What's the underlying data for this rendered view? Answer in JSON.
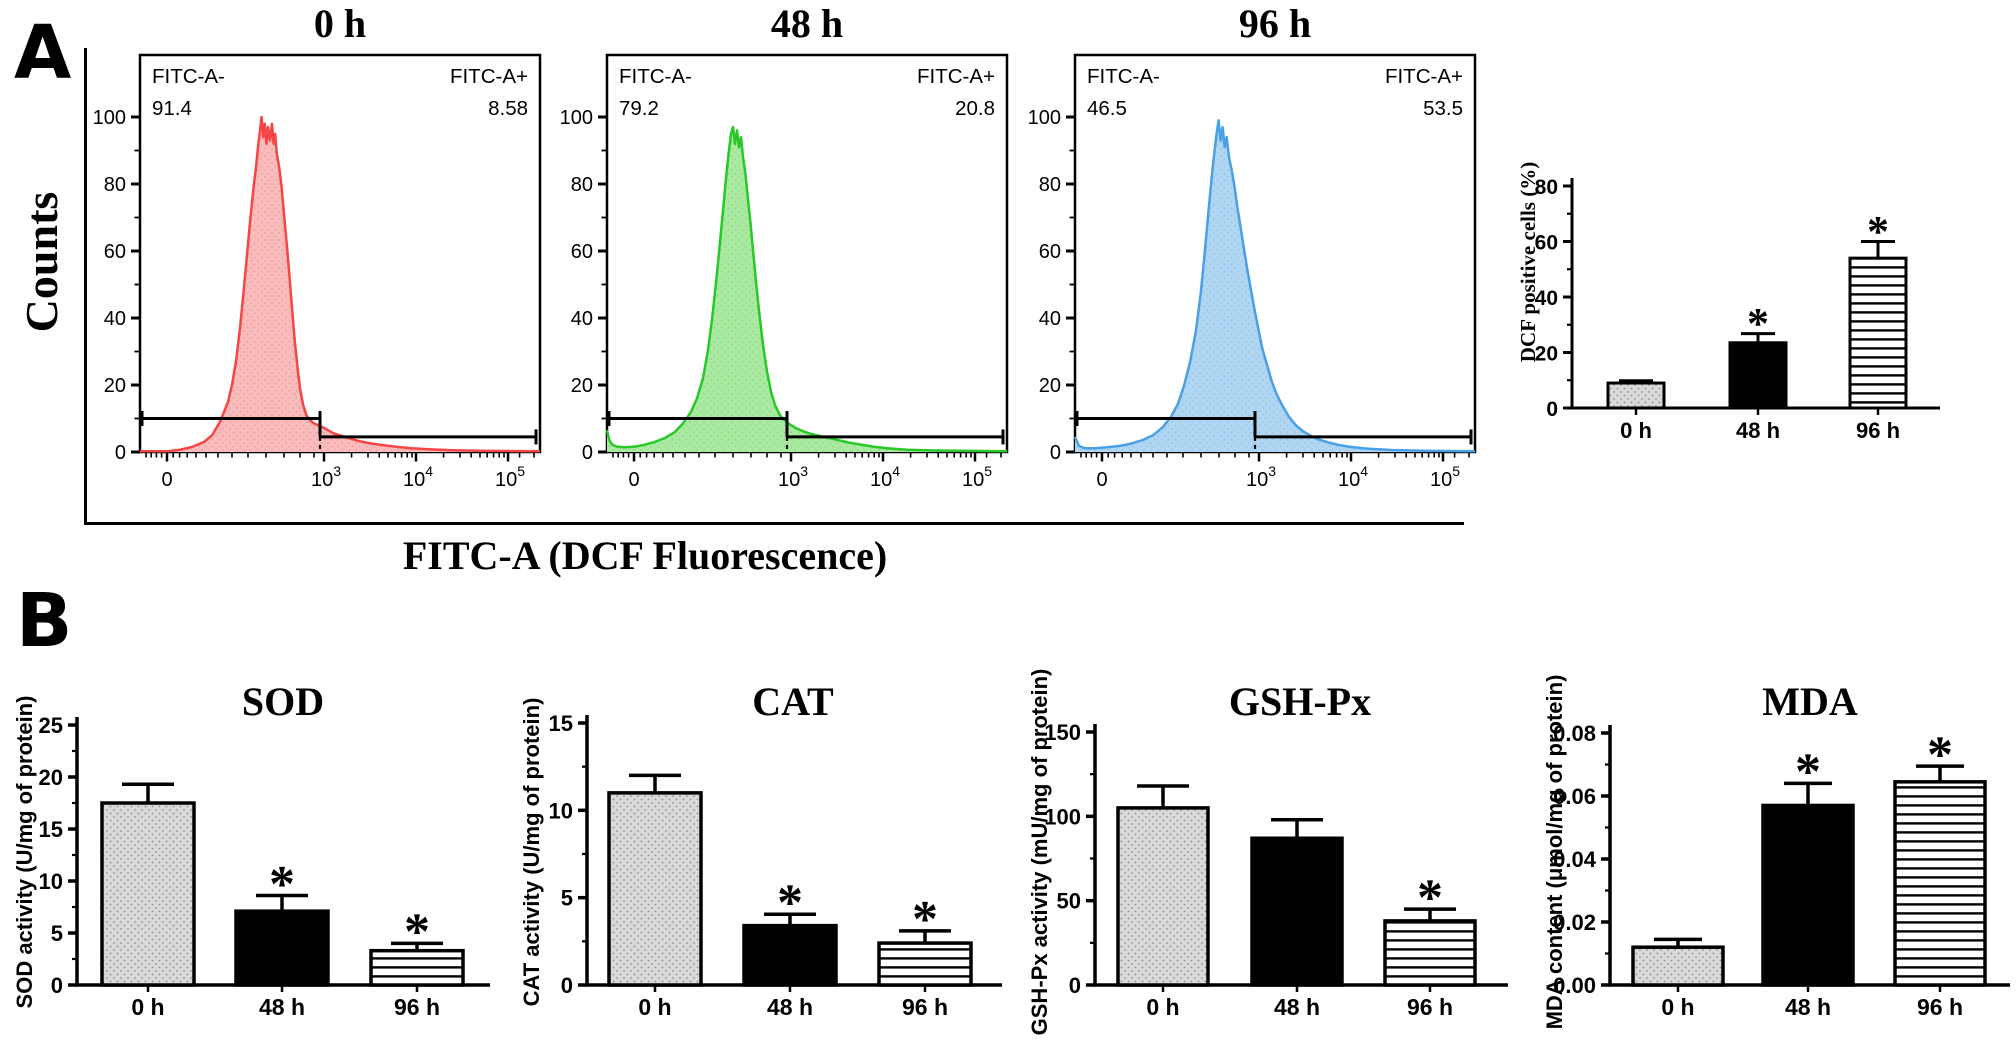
{
  "figure": {
    "panel_a": {
      "label": "A",
      "y_axis_label": "Counts",
      "x_axis_label": "FITC-A (DCF Fluorescence)"
    },
    "panel_b": {
      "label": "B"
    }
  },
  "chart_data": [
    {
      "id": "histogram-0h",
      "type": "histogram",
      "title": "0 h",
      "stroke": "#f54545",
      "fill": "#f9bcbc",
      "annotations": {
        "neg_label": "FITC-A-",
        "neg_value": "91.4",
        "pos_label": "FITC-A+",
        "pos_value": "8.58"
      },
      "ylim": [
        0,
        100
      ],
      "yticks": [
        0,
        20,
        40,
        60,
        80,
        100
      ],
      "xticks": [
        {
          "label": "0",
          "pos": 6.75
        },
        {
          "label": "10",
          "exp": "3",
          "pos": 46
        },
        {
          "label": "10",
          "exp": "4",
          "pos": 69
        },
        {
          "label": "10",
          "exp": "5",
          "pos": 92
        }
      ],
      "minor_xticks": [
        1.5,
        2.8,
        4.1,
        5.4,
        8.3,
        9.9,
        11.8,
        14,
        16.5,
        19.5,
        23,
        27,
        31.5,
        36,
        40,
        43.5,
        52.9,
        57,
        59.8,
        62,
        63.8,
        65.4,
        66.8,
        68,
        75.9,
        80,
        82.8,
        85,
        86.8,
        88.4,
        89.8,
        91,
        94.9,
        98.5
      ],
      "gate_split": 45,
      "neg_gate_level": 10,
      "pos_gate_level": 4.5,
      "curve": [
        [
          0,
          0.2
        ],
        [
          7,
          0.2
        ],
        [
          10,
          0.7
        ],
        [
          13,
          1.5
        ],
        [
          16,
          3
        ],
        [
          18,
          5
        ],
        [
          20,
          9
        ],
        [
          22,
          15
        ],
        [
          23,
          20
        ],
        [
          24,
          27
        ],
        [
          25,
          37
        ],
        [
          26,
          49
        ],
        [
          27,
          62
        ],
        [
          27.7,
          71
        ],
        [
          28.3,
          78
        ],
        [
          29,
          85
        ],
        [
          29.5,
          91
        ],
        [
          30,
          96
        ],
        [
          30.4,
          100
        ],
        [
          30.8,
          94
        ],
        [
          31.2,
          98
        ],
        [
          31.6,
          92
        ],
        [
          32,
          97
        ],
        [
          32.5,
          93
        ],
        [
          33,
          98
        ],
        [
          33.4,
          92
        ],
        [
          33.8,
          95
        ],
        [
          34.2,
          89
        ],
        [
          34.8,
          85
        ],
        [
          35.4,
          79
        ],
        [
          36,
          71
        ],
        [
          36.7,
          62
        ],
        [
          37.4,
          52
        ],
        [
          38,
          43
        ],
        [
          38.7,
          33
        ],
        [
          39.4,
          25
        ],
        [
          40,
          19
        ],
        [
          40.8,
          14
        ],
        [
          41.6,
          11
        ],
        [
          42.5,
          9.5
        ],
        [
          43.5,
          8.5
        ],
        [
          44.5,
          8
        ],
        [
          45.5,
          7.5
        ],
        [
          47,
          6.5
        ],
        [
          48.5,
          5.5
        ],
        [
          50.5,
          4.8
        ],
        [
          52.5,
          4
        ],
        [
          55,
          3.2
        ],
        [
          58,
          2.5
        ],
        [
          61,
          2
        ],
        [
          64.5,
          1.5
        ],
        [
          68,
          1.1
        ],
        [
          72,
          0.8
        ],
        [
          78,
          0.5
        ],
        [
          85,
          0.35
        ],
        [
          100,
          0.25
        ]
      ]
    },
    {
      "id": "histogram-48h",
      "type": "histogram",
      "title": "48 h",
      "stroke": "#28c828",
      "fill": "#abe9a3",
      "annotations": {
        "neg_label": "FITC-A-",
        "neg_value": "79.2",
        "pos_label": "FITC-A+",
        "pos_value": "20.8"
      },
      "ylim": [
        0,
        100
      ],
      "yticks": [
        0,
        20,
        40,
        60,
        80,
        100
      ],
      "xticks": [
        {
          "label": "0",
          "pos": 6.75
        },
        {
          "label": "10",
          "exp": "3",
          "pos": 46
        },
        {
          "label": "10",
          "exp": "4",
          "pos": 69
        },
        {
          "label": "10",
          "exp": "5",
          "pos": 92
        }
      ],
      "minor_xticks": [
        1.5,
        2.8,
        4.1,
        5.4,
        8.3,
        9.9,
        11.8,
        14,
        16.5,
        19.5,
        23,
        27,
        31.5,
        36,
        40,
        43.5,
        52.9,
        57,
        59.8,
        62,
        63.8,
        65.4,
        66.8,
        68,
        75.9,
        80,
        82.8,
        85,
        86.8,
        88.4,
        89.8,
        91,
        94.9,
        98.5
      ],
      "gate_split": 45,
      "neg_gate_level": 10,
      "pos_gate_level": 4.5,
      "curve": [
        [
          0,
          6.5
        ],
        [
          0.6,
          3.5
        ],
        [
          1.3,
          2.2
        ],
        [
          2.5,
          1.6
        ],
        [
          4.5,
          1.4
        ],
        [
          7,
          1.6
        ],
        [
          9.5,
          2.2
        ],
        [
          12,
          3
        ],
        [
          14.5,
          4.2
        ],
        [
          17,
          6
        ],
        [
          19,
          8.5
        ],
        [
          21,
          12
        ],
        [
          22.5,
          16
        ],
        [
          24,
          22
        ],
        [
          25.2,
          30
        ],
        [
          26.3,
          40
        ],
        [
          27.3,
          51
        ],
        [
          28.2,
          62
        ],
        [
          29,
          72
        ],
        [
          29.7,
          81
        ],
        [
          30.4,
          89
        ],
        [
          31,
          95
        ],
        [
          31.5,
          97
        ],
        [
          32,
          92
        ],
        [
          32.5,
          96
        ],
        [
          33,
          91
        ],
        [
          33.5,
          94
        ],
        [
          34,
          88
        ],
        [
          34.6,
          83
        ],
        [
          35.2,
          76
        ],
        [
          35.9,
          68
        ],
        [
          36.6,
          59
        ],
        [
          37.4,
          49
        ],
        [
          38.2,
          40
        ],
        [
          39,
          32
        ],
        [
          40,
          24
        ],
        [
          41,
          18
        ],
        [
          42,
          14
        ],
        [
          43.2,
          11
        ],
        [
          44.5,
          9.3
        ],
        [
          46,
          8
        ],
        [
          47.5,
          7
        ],
        [
          49,
          6.2
        ],
        [
          51,
          5.4
        ],
        [
          53,
          4.8
        ],
        [
          55.5,
          4.2
        ],
        [
          58,
          3.5
        ],
        [
          60.5,
          2.8
        ],
        [
          63.5,
          2.2
        ],
        [
          66.5,
          1.6
        ],
        [
          70,
          1.1
        ],
        [
          75,
          0.7
        ],
        [
          82,
          0.45
        ],
        [
          100,
          0.25
        ]
      ]
    },
    {
      "id": "histogram-96h",
      "type": "histogram",
      "title": "96 h",
      "stroke": "#4aa0e8",
      "fill": "#b0d6f2",
      "annotations": {
        "neg_label": "FITC-A-",
        "neg_value": "46.5",
        "pos_label": "FITC-A+",
        "pos_value": "53.5"
      },
      "ylim": [
        0,
        100
      ],
      "yticks": [
        0,
        20,
        40,
        60,
        80,
        100
      ],
      "xticks": [
        {
          "label": "0",
          "pos": 6.75
        },
        {
          "label": "10",
          "exp": "3",
          "pos": 46
        },
        {
          "label": "10",
          "exp": "4",
          "pos": 69
        },
        {
          "label": "10",
          "exp": "5",
          "pos": 92
        }
      ],
      "minor_xticks": [
        1.5,
        2.8,
        4.1,
        5.4,
        8.3,
        9.9,
        11.8,
        14,
        16.5,
        19.5,
        23,
        27,
        31.5,
        36,
        40,
        43.5,
        52.9,
        57,
        59.8,
        62,
        63.8,
        65.4,
        66.8,
        68,
        75.9,
        80,
        82.8,
        85,
        86.8,
        88.4,
        89.8,
        91,
        94.9,
        98.5
      ],
      "gate_split": 45,
      "neg_gate_level": 10,
      "pos_gate_level": 4.5,
      "curve": [
        [
          0,
          4.5
        ],
        [
          1,
          1.8
        ],
        [
          2.5,
          1.1
        ],
        [
          5,
          1.1
        ],
        [
          8,
          1.4
        ],
        [
          11,
          1.8
        ],
        [
          14,
          2.5
        ],
        [
          17,
          3.6
        ],
        [
          19.5,
          5
        ],
        [
          22,
          7.5
        ],
        [
          24,
          10.5
        ],
        [
          25.8,
          14.5
        ],
        [
          27.3,
          20
        ],
        [
          28.8,
          27
        ],
        [
          30.2,
          36
        ],
        [
          31.4,
          47
        ],
        [
          32.4,
          59
        ],
        [
          33.3,
          71
        ],
        [
          34.1,
          81
        ],
        [
          34.8,
          89
        ],
        [
          35.4,
          95
        ],
        [
          35.9,
          99
        ],
        [
          36.4,
          93
        ],
        [
          36.9,
          97
        ],
        [
          37.4,
          91
        ],
        [
          37.9,
          94
        ],
        [
          38.5,
          88
        ],
        [
          39.2,
          84
        ],
        [
          39.9,
          79
        ],
        [
          40.6,
          73
        ],
        [
          41.4,
          67
        ],
        [
          42.2,
          61
        ],
        [
          43,
          55
        ],
        [
          43.9,
          49
        ],
        [
          44.8,
          43
        ],
        [
          45.8,
          37
        ],
        [
          46.8,
          31
        ],
        [
          48,
          26
        ],
        [
          49.2,
          21
        ],
        [
          50.5,
          17
        ],
        [
          52,
          13.5
        ],
        [
          53.5,
          10.5
        ],
        [
          55.2,
          8
        ],
        [
          57,
          6.2
        ],
        [
          59,
          4.8
        ],
        [
          61,
          3.7
        ],
        [
          63.5,
          2.8
        ],
        [
          66,
          2.1
        ],
        [
          69,
          1.5
        ],
        [
          73,
          1
        ],
        [
          79,
          0.6
        ],
        [
          87,
          0.35
        ],
        [
          100,
          0.25
        ]
      ]
    },
    {
      "id": "dcf",
      "type": "bar",
      "title": "",
      "ylabel": "DCF positive cells (%)",
      "categories": [
        "0 h",
        "48 h",
        "96 h"
      ],
      "values": [
        9,
        23.5,
        54
      ],
      "errors": [
        0.8,
        3.3,
        6
      ],
      "sig": [
        "",
        "*",
        "*"
      ],
      "ylim": [
        0,
        80
      ],
      "ytick_values": [
        0,
        20,
        40,
        60,
        80
      ],
      "ytick_labels": [
        "0",
        "20",
        "40",
        "60",
        "80"
      ],
      "bar_styles": [
        "dotted-gray",
        "solid-black",
        "striped"
      ]
    },
    {
      "id": "sod",
      "type": "bar",
      "title": "SOD",
      "ylabel": "SOD activity (U/mg of protein)",
      "categories": [
        "0 h",
        "48 h",
        "96 h"
      ],
      "values": [
        17.5,
        7.1,
        3.3
      ],
      "errors": [
        1.8,
        1.5,
        0.7
      ],
      "sig": [
        "",
        "*",
        "*"
      ],
      "ylim": [
        0,
        25
      ],
      "ytick_values": [
        0,
        5,
        10,
        15,
        20,
        25
      ],
      "ytick_labels": [
        "0",
        "5",
        "10",
        "15",
        "20",
        "25"
      ],
      "bar_styles": [
        "dotted-gray",
        "solid-black",
        "striped"
      ]
    },
    {
      "id": "cat",
      "type": "bar",
      "title": "CAT",
      "ylabel": "CAT activity (U/mg of protein)",
      "categories": [
        "0 h",
        "48 h",
        "96 h"
      ],
      "values": [
        11,
        3.4,
        2.4
      ],
      "errors": [
        1,
        0.65,
        0.7
      ],
      "sig": [
        "",
        "*",
        "*"
      ],
      "ylim": [
        0,
        15
      ],
      "ytick_values": [
        0,
        5,
        10,
        15
      ],
      "ytick_labels": [
        "0",
        "5",
        "10",
        "15"
      ],
      "bar_styles": [
        "dotted-gray",
        "solid-black",
        "striped"
      ]
    },
    {
      "id": "gsh",
      "type": "bar",
      "title": "GSH-Px",
      "ylabel": "GSH-Px activity (mU/mg of protein)",
      "categories": [
        "0 h",
        "48 h",
        "96 h"
      ],
      "values": [
        105,
        87,
        38
      ],
      "errors": [
        13,
        11,
        7
      ],
      "sig": [
        "",
        "",
        "*"
      ],
      "ylim": [
        0,
        150
      ],
      "ytick_values": [
        0,
        50,
        100,
        150
      ],
      "ytick_labels": [
        "0",
        "50",
        "100",
        "150"
      ],
      "bar_styles": [
        "dotted-gray",
        "solid-black",
        "striped"
      ]
    },
    {
      "id": "mda",
      "type": "bar",
      "title": "MDA",
      "ylabel": "MDA content (μmol/mg of protein)",
      "categories": [
        "0 h",
        "48 h",
        "96 h"
      ],
      "values": [
        0.012,
        0.057,
        0.0645
      ],
      "errors": [
        0.0025,
        0.007,
        0.005
      ],
      "sig": [
        "",
        "*",
        "*"
      ],
      "ylim": [
        0,
        0.08
      ],
      "ytick_values": [
        0,
        0.02,
        0.04,
        0.06,
        0.08
      ],
      "ytick_labels": [
        "0.00",
        "0.02",
        "0.04",
        "0.06",
        "0.08"
      ],
      "bar_styles": [
        "dotted-gray",
        "solid-black",
        "striped"
      ]
    }
  ]
}
